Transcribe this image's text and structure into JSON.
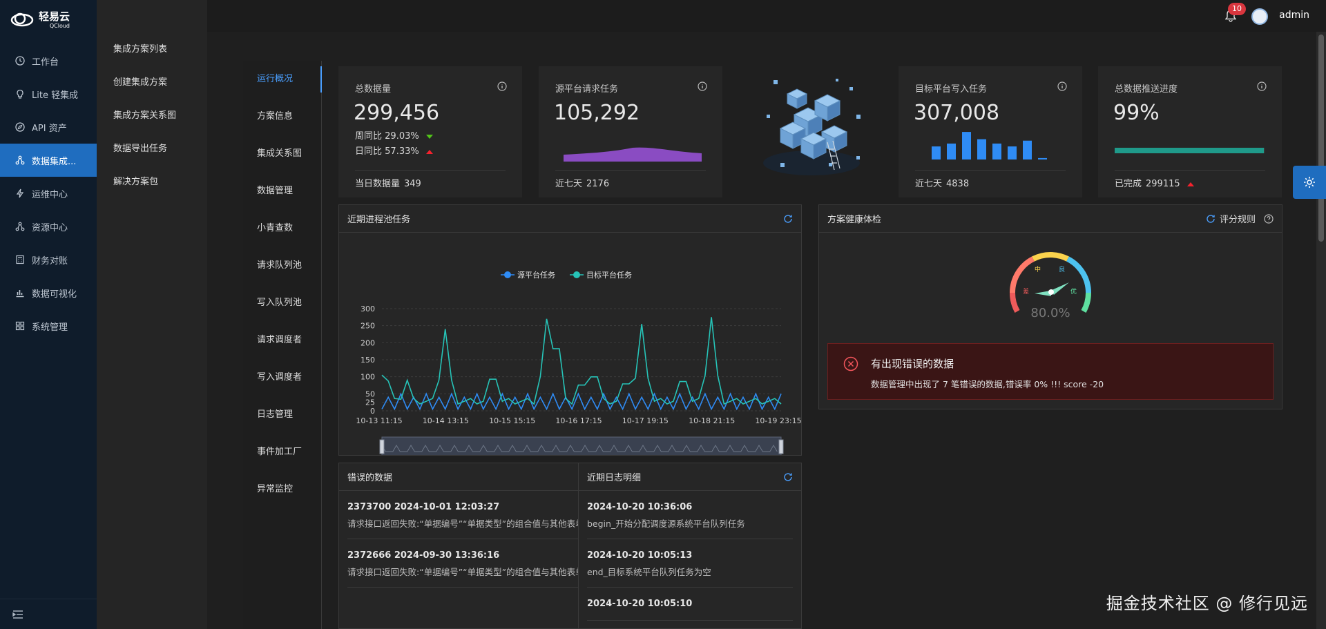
{
  "brand": {
    "name": "轻易云",
    "sub": "QCloud"
  },
  "nav": {
    "items": [
      {
        "label": "工作台",
        "icon": "clock-icon"
      },
      {
        "label": "Lite 轻集成",
        "icon": "bulb-icon"
      },
      {
        "label": "API 资产",
        "icon": "compass-icon"
      },
      {
        "label": "数据集成...",
        "icon": "cluster-icon"
      },
      {
        "label": "运维中心",
        "icon": "bolt-icon"
      },
      {
        "label": "资源中心",
        "icon": "cluster-icon"
      },
      {
        "label": "财务对账",
        "icon": "calculator-icon"
      },
      {
        "label": "数据可视化",
        "icon": "chart-icon"
      },
      {
        "label": "系统管理",
        "icon": "apps-icon"
      }
    ],
    "active_index": 3
  },
  "submenu": {
    "items": [
      "集成方案列表",
      "创建集成方案",
      "集成方案关系图",
      "数据导出任务",
      "解决方案包"
    ]
  },
  "header": {
    "notifications": "10",
    "username": "admin"
  },
  "tabs": {
    "items": [
      "运行概况",
      "方案信息",
      "集成关系图",
      "数据管理",
      "小青查数",
      "请求队列池",
      "写入队列池",
      "请求调度者",
      "写入调度者",
      "日志管理",
      "事件加工厂",
      "异常监控"
    ],
    "active_index": 0
  },
  "stats": {
    "total": {
      "label": "总数据量",
      "value": "299,456",
      "week_label": "周同比",
      "week_value": "29.03%",
      "day_label": "日同比",
      "day_value": "57.33%",
      "foot_label": "当日数据量",
      "foot_value": "349"
    },
    "source": {
      "label": "源平台请求任务",
      "value": "105,292",
      "foot_label": "近七天",
      "foot_value": "2176"
    },
    "target": {
      "label": "目标平台写入任务",
      "value": "307,008",
      "foot_label": "近七天",
      "foot_value": "4838",
      "bars": [
        0.45,
        0.55,
        0.95,
        0.7,
        0.55,
        0.45,
        0.65,
        0.05
      ]
    },
    "progress": {
      "label": "总数据推送进度",
      "value": "99%",
      "fraction": 0.99,
      "foot_label": "已完成",
      "foot_value": "299115"
    }
  },
  "process_panel": {
    "title": "近期进程池任务"
  },
  "chart_data": {
    "type": "line",
    "series": [
      {
        "name": "源平台任务",
        "color": "#2f8cf5"
      },
      {
        "name": "目标平台任务",
        "color": "#26c4b8"
      }
    ],
    "ylim": [
      0,
      300
    ],
    "yticks": [
      "0",
      "25",
      "50",
      "100",
      "150",
      "200",
      "250",
      "300"
    ],
    "xticks": [
      "10-13 11:15",
      "10-14 13:15",
      "10-15 15:15",
      "10-16 17:15",
      "10-17 19:15",
      "10-18 21:15",
      "10-19 23:15"
    ],
    "target_peaks": [
      {
        "x": 0.4,
        "y": 140
      },
      {
        "x": 4.0,
        "y": 90
      },
      {
        "x": 10.0,
        "y": 240
      },
      {
        "x": 17.5,
        "y": 135
      },
      {
        "x": 26.0,
        "y": 270
      },
      {
        "x": 27.5,
        "y": 265
      },
      {
        "x": 31.5,
        "y": 110
      },
      {
        "x": 33.5,
        "y": 145
      },
      {
        "x": 38.5,
        "y": 115
      },
      {
        "x": 41.0,
        "y": 255
      },
      {
        "x": 47.5,
        "y": 125
      },
      {
        "x": 52.0,
        "y": 275
      }
    ],
    "x_points": 64
  },
  "health_panel": {
    "title": "方案健康体检",
    "rules": "评分规则",
    "score": "80.0%",
    "gauge": {
      "bad": "差",
      "mid": "中",
      "good": "良",
      "excellent": "优",
      "value": 0.8
    },
    "alert_title": "有出现错误的数据",
    "alert_desc": "数据管理中出现了 7 笔错误的数据,错误率 0% !!! score -20"
  },
  "errors_panel": {
    "title": "错误的数据",
    "entries": [
      {
        "head": "2373700 2024-10-01 12:03:27",
        "body": "请求接口返回失败:“单据编号”“单据类型”的组合值与其他表单重复，请至少修改一项。"
      },
      {
        "head": "2372666 2024-09-30 13:36:16",
        "body": "请求接口返回失败:“单据编号”“单据类型”的组合值与其他表单重复，请至少修改一项。"
      }
    ]
  },
  "logs_panel": {
    "title": "近期日志明细",
    "entries": [
      {
        "head": "2024-10-20 10:36:06",
        "body": "begin_开始分配调度源系统平台队列任务"
      },
      {
        "head": "2024-10-20 10:05:13",
        "body": "end_目标系统平台队列任务为空"
      },
      {
        "head": "2024-10-20 10:05:10",
        "body": ""
      }
    ]
  },
  "watermark": "掘金技术社区 @ 修行见远"
}
